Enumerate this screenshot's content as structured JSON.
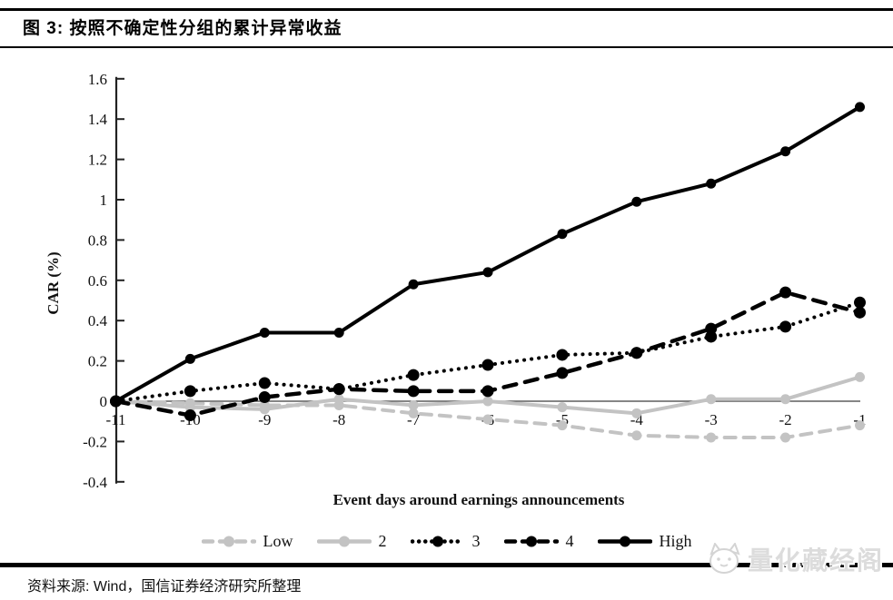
{
  "page": {
    "title": "图 3: 按照不确定性分组的累计异常收益",
    "source_note": "资料来源: Wind，国信证券经济研究所整理",
    "watermark_text": "量化藏经阁",
    "watermark_icon": "cat-face-icon"
  },
  "colors": {
    "series_black": "#000000",
    "series_gray": "#c3c3c3",
    "axis": "#222222",
    "zero_line": "#3d3d3d",
    "watermark_gray": "#dcdcdc"
  },
  "chart_data": {
    "type": "line",
    "title": "图 3: 按照不确定性分组的累计异常收益",
    "xlabel": "Event days around earnings announcements",
    "ylabel": "CAR (%)",
    "x": [
      -11,
      -10,
      -9,
      -8,
      -7,
      -6,
      -5,
      -4,
      -3,
      -2,
      -1
    ],
    "x_tick_labels": [
      "-11",
      "-10",
      "-9",
      "-8",
      "-7",
      "-6",
      "-5",
      "-4",
      "-3",
      "-2",
      "-1"
    ],
    "y_tick_labels": [
      "1.6",
      "1.4",
      "1.2",
      "1",
      "0.8",
      "0.6",
      "0.4",
      "0.2",
      "0",
      "-0.2",
      "-0.4"
    ],
    "ylim": [
      -0.4,
      1.6
    ],
    "grid": "zero-line-only",
    "legend_position": "bottom",
    "series": [
      {
        "name": "Low",
        "style": "dashed",
        "color": "#c3c3c3",
        "marker": "circle",
        "values": [
          0,
          -0.01,
          -0.02,
          -0.02,
          -0.06,
          -0.09,
          -0.12,
          -0.17,
          -0.18,
          -0.18,
          -0.12
        ]
      },
      {
        "name": "2",
        "style": "solid",
        "color": "#c3c3c3",
        "marker": "circle",
        "values": [
          0,
          -0.03,
          -0.04,
          0.01,
          -0.02,
          0.0,
          -0.03,
          -0.06,
          0.01,
          0.01,
          0.12
        ]
      },
      {
        "name": "3",
        "style": "dotted",
        "color": "#000000",
        "marker": "circle",
        "values": [
          0,
          0.05,
          0.09,
          0.06,
          0.13,
          0.18,
          0.23,
          0.24,
          0.32,
          0.37,
          0.49
        ]
      },
      {
        "name": "4",
        "style": "dashed",
        "color": "#000000",
        "marker": "circle",
        "values": [
          0,
          -0.07,
          0.02,
          0.06,
          0.05,
          0.05,
          0.14,
          0.24,
          0.36,
          0.54,
          0.44
        ]
      },
      {
        "name": "High",
        "style": "solid",
        "color": "#000000",
        "marker": "circle",
        "values": [
          0,
          0.21,
          0.34,
          0.34,
          0.58,
          0.64,
          0.83,
          0.99,
          1.08,
          1.24,
          1.46
        ]
      }
    ]
  }
}
